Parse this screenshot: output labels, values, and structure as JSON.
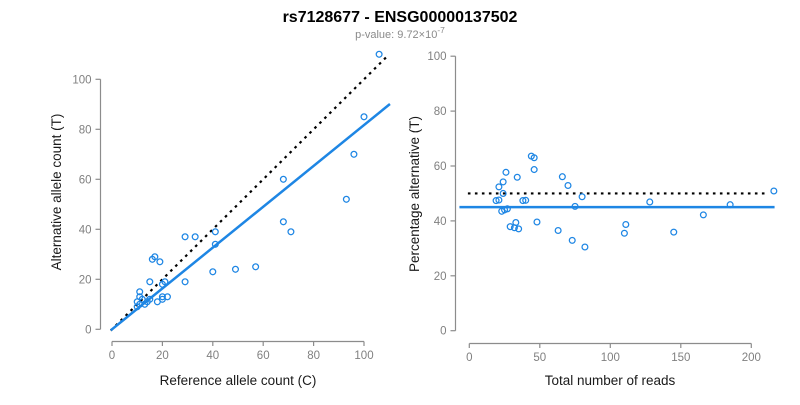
{
  "header": {
    "title": "rs7128677 - ENSG00000137502",
    "subtitle_base": "p-value: 9.72×10",
    "subtitle_exponent": "-7"
  },
  "colors": {
    "accent_blue": "#1E86E4",
    "dotted_line": "#000000",
    "axis_line": "#8C8C8C",
    "tick_label": "#808080",
    "axis_label": "#1A1A1A",
    "subtitle_gray": "#8A8A8A"
  },
  "chart_data": [
    {
      "type": "scatter",
      "name": "allele-counts-scatter",
      "xlabel": "Reference allele count (C)",
      "ylabel": "Alternative allele count (T)",
      "xticks": [
        0,
        20,
        40,
        60,
        80,
        100
      ],
      "yticks": [
        0,
        20,
        40,
        60,
        80,
        100
      ],
      "xlim": [
        -2,
        112
      ],
      "ylim": [
        -2,
        114
      ],
      "grid": false,
      "legend": "none",
      "points": [
        [
          16,
          28
        ],
        [
          17,
          29
        ],
        [
          19,
          27
        ],
        [
          11,
          15
        ],
        [
          15,
          19
        ],
        [
          29,
          37
        ],
        [
          33,
          37
        ],
        [
          11,
          13
        ],
        [
          10,
          11
        ],
        [
          12,
          12
        ],
        [
          106,
          110
        ],
        [
          41,
          39
        ],
        [
          11,
          10
        ],
        [
          10,
          9
        ],
        [
          20,
          18
        ],
        [
          21,
          19
        ],
        [
          41,
          34
        ],
        [
          68,
          60
        ],
        [
          100,
          85
        ],
        [
          13,
          10
        ],
        [
          14,
          11
        ],
        [
          15,
          12
        ],
        [
          96,
          70
        ],
        [
          29,
          19
        ],
        [
          20,
          13
        ],
        [
          18,
          11
        ],
        [
          20,
          12
        ],
        [
          22,
          13
        ],
        [
          40,
          23
        ],
        [
          71,
          39
        ],
        [
          68,
          43
        ],
        [
          93,
          52
        ],
        [
          49,
          24
        ],
        [
          57,
          25
        ]
      ],
      "lines": [
        {
          "name": "identity-line",
          "style": "dotted",
          "color": "#000000",
          "slope": 1,
          "intercept": 0,
          "x_range": [
            -0.5,
            109
          ]
        },
        {
          "name": "fit-line",
          "style": "solid",
          "color": "#1E86E4",
          "slope": 0.817,
          "intercept": 0,
          "x_range": [
            -0.5,
            110.3
          ]
        }
      ]
    },
    {
      "type": "scatter",
      "name": "percentage-vs-reads-scatter",
      "xlabel": "Total number of reads",
      "ylabel": "Percentage alternative (T)",
      "xticks": [
        0,
        50,
        100,
        150,
        200
      ],
      "yticks": [
        0,
        20,
        40,
        60,
        80,
        100
      ],
      "xlim": [
        -8,
        218
      ],
      "ylim": [
        0,
        100
      ],
      "grid": false,
      "legend": "none",
      "points": [
        [
          44,
          63.6
        ],
        [
          46,
          63.0
        ],
        [
          46,
          58.7
        ],
        [
          26,
          57.7
        ],
        [
          34,
          55.9
        ],
        [
          66,
          56.1
        ],
        [
          70,
          52.9
        ],
        [
          24,
          54.2
        ],
        [
          21,
          52.4
        ],
        [
          24,
          50.0
        ],
        [
          216,
          50.9
        ],
        [
          80,
          48.8
        ],
        [
          21,
          47.6
        ],
        [
          19,
          47.4
        ],
        [
          38,
          47.4
        ],
        [
          40,
          47.5
        ],
        [
          75,
          45.3
        ],
        [
          128,
          46.9
        ],
        [
          185,
          45.9
        ],
        [
          23,
          43.5
        ],
        [
          25,
          44.0
        ],
        [
          27,
          44.4
        ],
        [
          166,
          42.2
        ],
        [
          48,
          39.6
        ],
        [
          33,
          39.4
        ],
        [
          29,
          37.9
        ],
        [
          32,
          37.5
        ],
        [
          35,
          37.1
        ],
        [
          63,
          36.5
        ],
        [
          110,
          35.5
        ],
        [
          111,
          38.7
        ],
        [
          145,
          35.9
        ],
        [
          73,
          32.9
        ],
        [
          82,
          30.5
        ]
      ],
      "lines": [
        {
          "name": "fifty-percent-line",
          "style": "dotted",
          "color": "#000000",
          "slope": 0,
          "intercept": 50,
          "x_range": [
            -1,
            212
          ]
        },
        {
          "name": "mean-percentage-line",
          "style": "solid",
          "color": "#1E86E4",
          "slope": 0,
          "intercept": 45,
          "x_range": [
            -7,
            216.5
          ]
        }
      ]
    }
  ]
}
